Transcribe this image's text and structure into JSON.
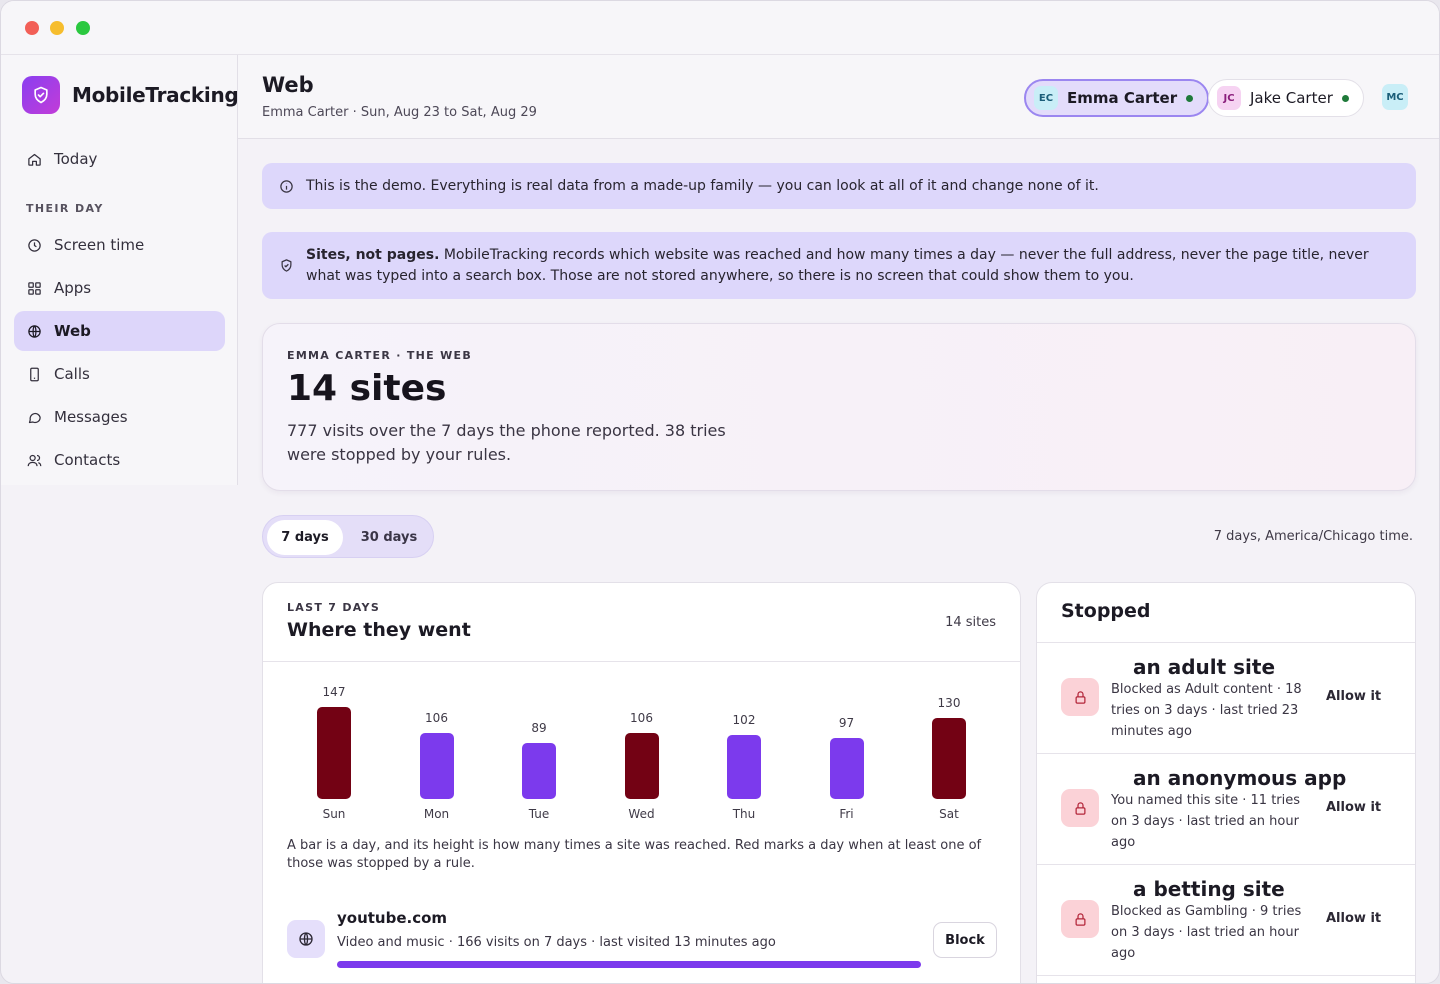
{
  "brand": {
    "name": "MobileTracking"
  },
  "sidebar": {
    "today": "Today",
    "section": "THEIR DAY",
    "items": [
      "Screen time",
      "Apps",
      "Web",
      "Calls",
      "Messages",
      "Contacts"
    ],
    "active": "Web"
  },
  "header": {
    "title": "Web",
    "subtitle": "Emma Carter · Sun, Aug 23 to Sat, Aug 29",
    "people": [
      {
        "initials": "EC",
        "name": "Emma Carter",
        "active": true
      },
      {
        "initials": "JC",
        "name": "Jake Carter",
        "active": false
      }
    ],
    "user_initials": "MC"
  },
  "banners": {
    "demo": "This is the demo. Everything is real data from a made-up family — you can look at all of it and change none of it.",
    "privacy_bold": "Sites, not pages.",
    "privacy_text": " MobileTracking records which website was reached and how many times a day — never the full address, never the page title, never what was typed into a search box. Those are not stored anywhere, so there is no screen that could show them to you."
  },
  "hero": {
    "eyebrow": "EMMA CARTER · THE WEB",
    "big": "14 sites",
    "text": "777 visits over the 7 days the phone reported. 38 tries were stopped by your rules."
  },
  "range": {
    "options": [
      "7 days",
      "30 days"
    ],
    "selected": "7 days",
    "timezone_note": "7 days, America/Chicago time."
  },
  "chart_card": {
    "eyebrow": "LAST 7 DAYS",
    "title": "Where they went",
    "count": "14 sites",
    "note": "A bar is a day, and its height is how many times a site was reached. Red marks a day when at least one of those was stopped by a rule."
  },
  "chart_data": {
    "type": "bar",
    "categories": [
      "Sun",
      "Mon",
      "Tue",
      "Wed",
      "Thu",
      "Fri",
      "Sat"
    ],
    "values": [
      147,
      106,
      89,
      106,
      102,
      97,
      130
    ],
    "stopped": [
      true,
      false,
      false,
      true,
      false,
      false,
      true
    ],
    "colors": {
      "stopped": "#730214",
      "normal": "#7c3aed"
    }
  },
  "sites": [
    {
      "name": "youtube.com",
      "meta": "Video and music · 166 visits on 7 days · last visited 13 minutes ago",
      "share": 1.0,
      "action": "Block"
    }
  ],
  "stopped": {
    "title": "Stopped",
    "items": [
      {
        "name": "an adult site",
        "meta": "Blocked as Adult content · 18 tries on 3 days · last tried 23 minutes ago",
        "action": "Allow it"
      },
      {
        "name": "an anonymous app",
        "meta": "You named this site · 11 tries on 3 days · last tried an hour ago",
        "action": "Allow it"
      },
      {
        "name": "a betting site",
        "meta": "Blocked as Gambling · 9 tries on 3 days · last tried an hour ago",
        "action": "Allow it"
      }
    ]
  }
}
